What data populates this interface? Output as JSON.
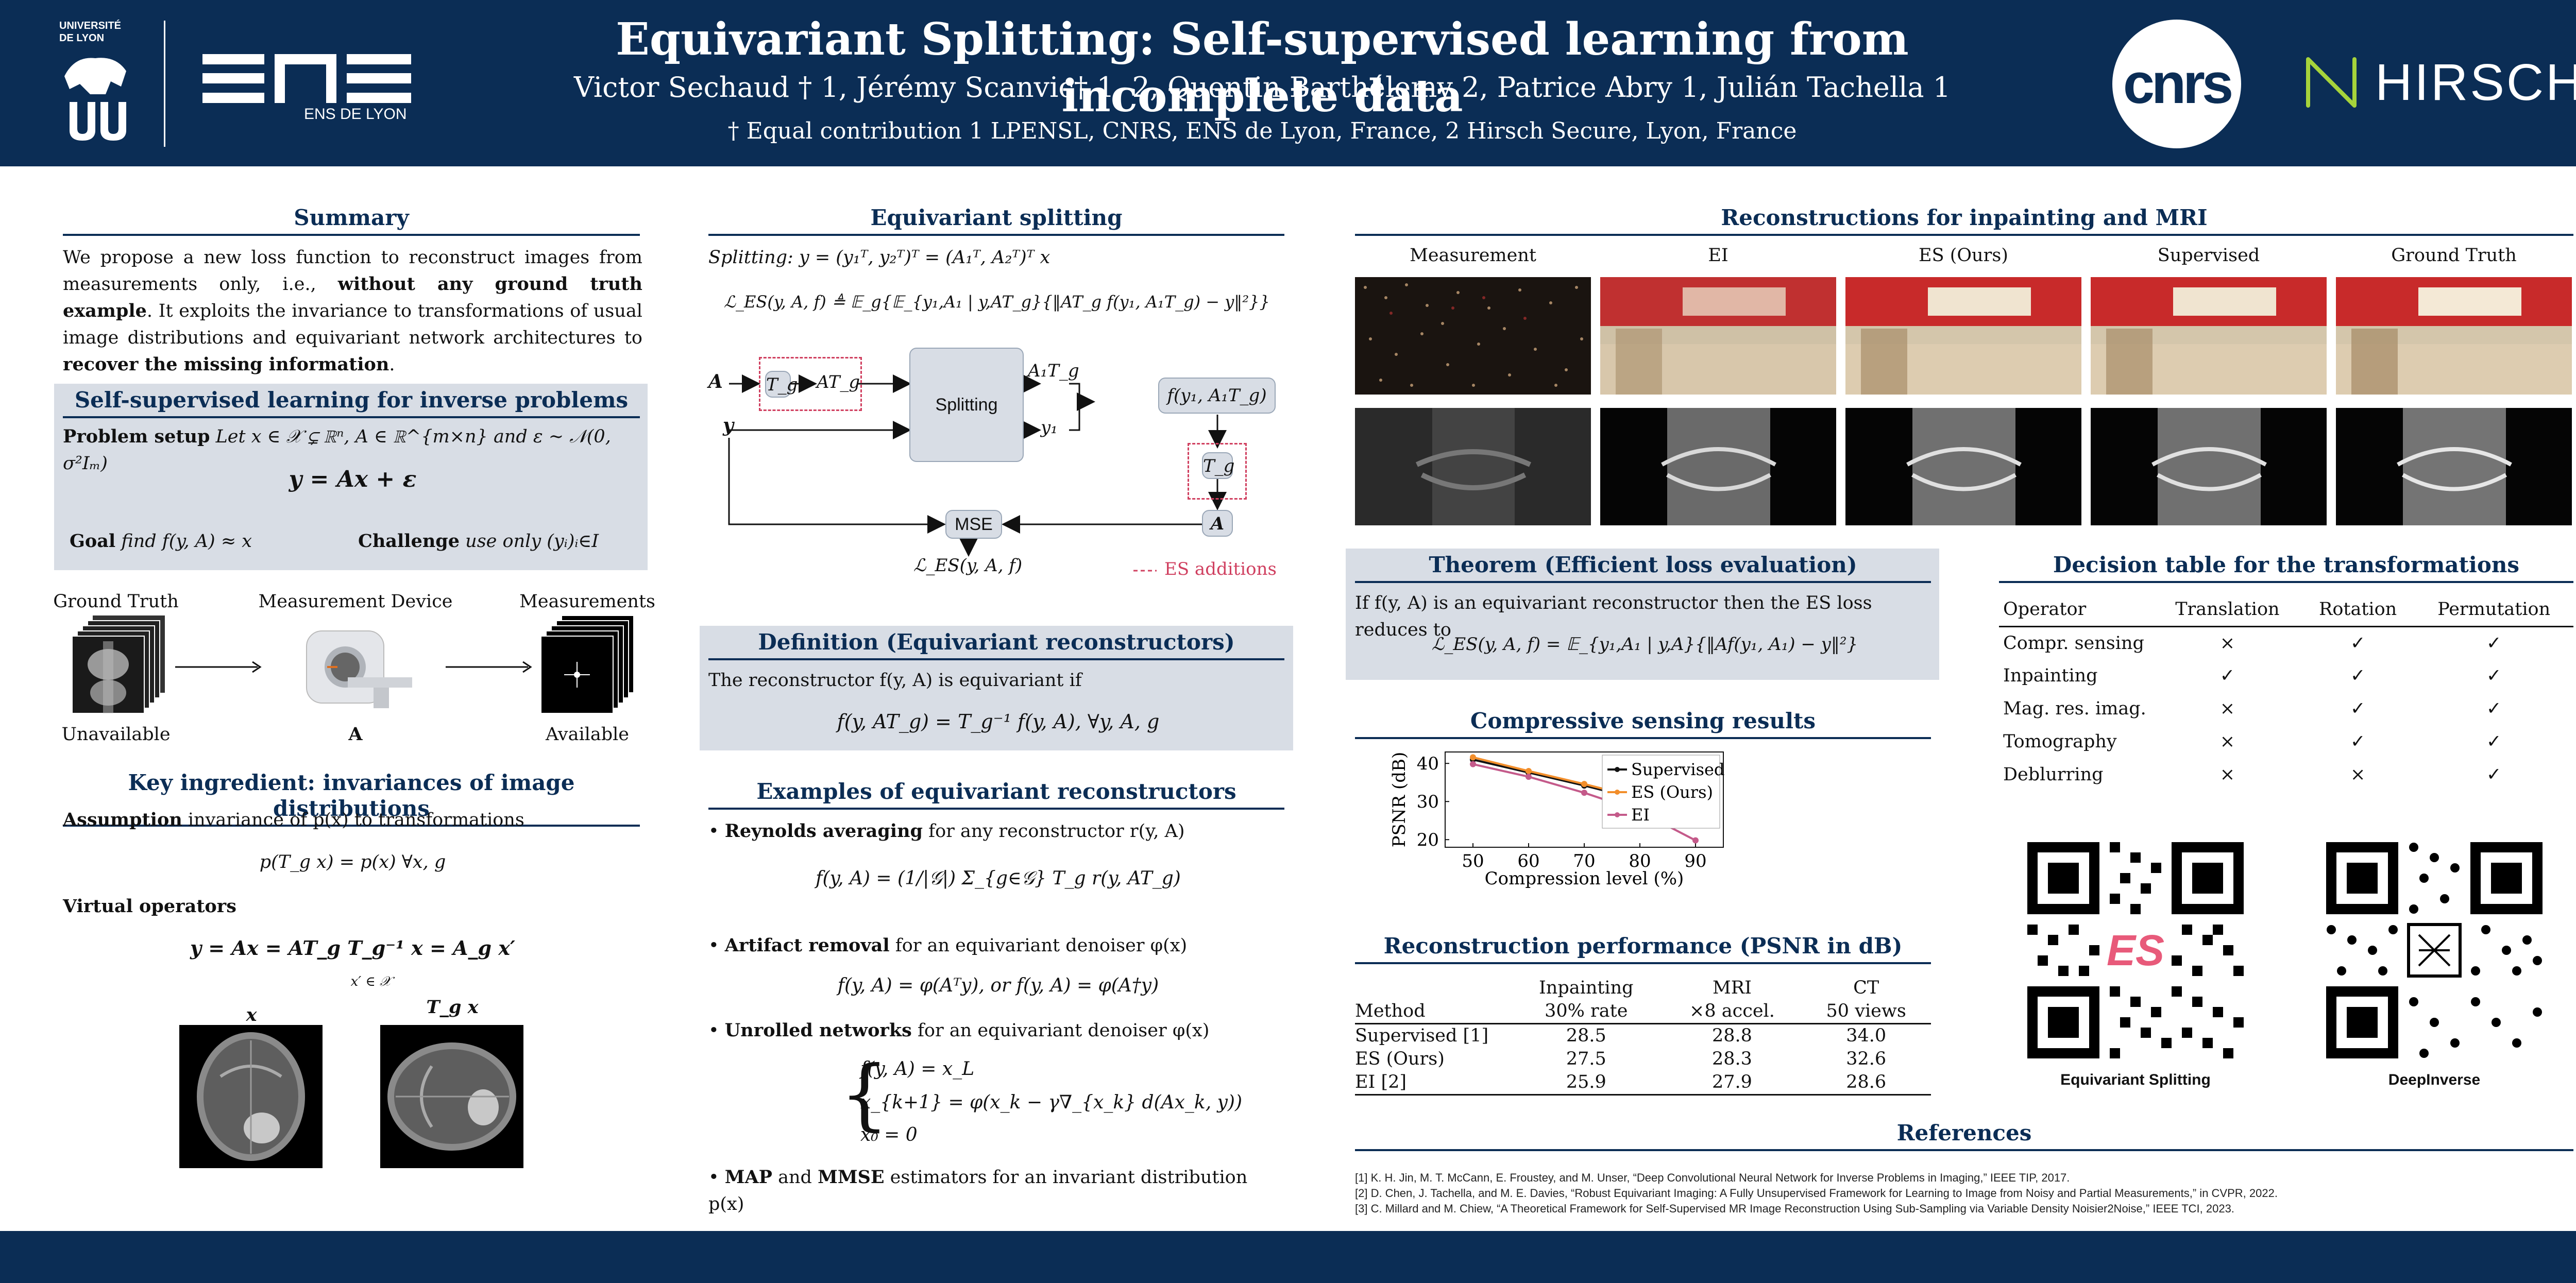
{
  "header": {
    "title": "Equivariant Splitting: Self-supervised learning from incomplete data",
    "authors": "Victor Sechaud † 1, Jérémy Scanvic† 1, 2, Quentin Barthélemy 2, Patrice Abry 1, Julián Tachella 1",
    "affiliations": "† Equal contribution 1 LPENSL, CNRS, ENS de Lyon, France, 2 Hirsch Secure, Lyon, France",
    "logo_univ": "UNIVERSITÉ DE LYON",
    "logo_ens_sub": "ENS DE LYON",
    "logo_cnrs": "cnrs",
    "logo_hirsch": "HIRSCH"
  },
  "summary": {
    "title": "Summary",
    "text_1": "We propose a new loss function to reconstruct images from measurements only, i.e., ",
    "bold_1": "without any ground truth example",
    "text_2": ". It exploits the invariance to transformations of usual image distributions and equivariant network architectures to ",
    "bold_2": "recover the missing information",
    "text_3": "."
  },
  "ssl": {
    "title": "Self-supervised learning for inverse problems",
    "setup_label": "Problem setup",
    "setup_text": "Let x ∈ 𝒳 ⊊ ℝⁿ, A ∈ ℝ^{m×n} and ε ∼ 𝒩(0, σ²Iₘ)",
    "equation": "y = Ax + ε",
    "goal_label": "Goal",
    "goal_text": "find f(y, A) ≈ x",
    "challenge_label": "Challenge",
    "challenge_text": "use only (yᵢ)ᵢ∈I"
  },
  "pipeline": {
    "ground_truth": "Ground Truth",
    "device": "Measurement Device",
    "measurements": "Measurements",
    "unavailable": "Unavailable",
    "operator": "A",
    "available": "Available"
  },
  "key_ingredient": {
    "title": "Key ingredient: invariances of image distributions",
    "assumption_label": "Assumption",
    "assumption_text": "invariance of p(x) to transformations",
    "eq1": "p(T_g x) = p(x)    ∀x, g",
    "virtual_label": "Virtual operators",
    "eq2": "y = Ax = AT_g T_g⁻¹ x = A_g x′",
    "eq2_sub": "x′ ∈ 𝒳",
    "img_x_label": "x",
    "img_tgx_label": "T_g x"
  },
  "es": {
    "title": "Equivariant splitting",
    "splitting_eq": "Splitting: y = (y₁ᵀ, y₂ᵀ)ᵀ = (A₁ᵀ, A₂ᵀ)ᵀ x",
    "loss_eq": "ℒ_ES(y, A, f) ≜ 𝔼_g{𝔼_{y₁,A₁ | y,AT_g}{‖AT_g f(y₁, A₁T_g) − y‖²}}",
    "diagram": {
      "A": "A",
      "Tg": "T_g",
      "ATg": "AT_g",
      "splitting": "Splitting",
      "A1Tg": "A₁T_g",
      "y1": "y₁",
      "y": "y",
      "f": "f(y₁, A₁T_g)",
      "Tg2": "T_g",
      "A2": "A",
      "mse": "MSE",
      "loss": "ℒ_ES(y, A, f)",
      "legend": "ES additions"
    }
  },
  "definition": {
    "title": "Definition (Equivariant reconstructors)",
    "text": "The reconstructor f(y, A) is equivariant if",
    "eq": "f(y, AT_g) = T_g⁻¹ f(y, A),    ∀y, A, g"
  },
  "examples": {
    "title": "Examples of equivariant reconstructors",
    "item1_bold": "Reynolds averaging",
    "item1_text": " for any reconstructor r(y, A)",
    "item1_eq": "f(y, A) = (1/|𝒢|) Σ_{g∈𝒢} T_g r(y, AT_g)",
    "item2_bold": "Artifact removal",
    "item2_text": " for an equivariant denoiser φ(x)",
    "item2_eq": "f(y, A) = φ(Aᵀy),    or    f(y, A) = φ(A†y)",
    "item3_bold": "Unrolled networks",
    "item3_text": " for an equivariant denoiser φ(x)",
    "item3_eq1": "f(y, A) = x_L",
    "item3_eq2": "x_{k+1} = φ(x_k − γ∇_{x_k} d(Ax_k, y))",
    "item3_eq3": "x₀ = 0",
    "item4_bold1": "MAP",
    "item4_and": " and ",
    "item4_bold2": "MMSE",
    "item4_text": " estimators for an invariant distribution p(x)"
  },
  "recon": {
    "title": "Reconstructions for inpainting and MRI",
    "columns": [
      "Measurement",
      "EI",
      "ES (Ours)",
      "Supervised",
      "Ground Truth"
    ]
  },
  "theorem": {
    "title": "Theorem (Efficient loss evaluation)",
    "text": "If f(y, A) is an equivariant reconstructor then the ES loss reduces to",
    "eq": "ℒ_ES(y, A, f) = 𝔼_{y₁,A₁ | y,A}{‖Af(y₁, A₁) − y‖²}"
  },
  "decision": {
    "title": "Decision table for the transformations",
    "headers": [
      "Operator",
      "Translation",
      "Rotation",
      "Permutation"
    ],
    "rows": [
      [
        "Compr. sensing",
        "×",
        "✓",
        "✓"
      ],
      [
        "Inpainting",
        "✓",
        "✓",
        "✓"
      ],
      [
        "Mag. res. imag.",
        "×",
        "✓",
        "✓"
      ],
      [
        "Tomography",
        "×",
        "✓",
        "✓"
      ],
      [
        "Deblurring",
        "×",
        "×",
        "✓"
      ]
    ]
  },
  "cs": {
    "title": "Compressive sensing results"
  },
  "chart_data": {
    "type": "line",
    "x": [
      50,
      60,
      70,
      80,
      90
    ],
    "series": [
      {
        "name": "Supervised",
        "values": [
          41.0,
          37.6,
          34.2,
          30.5,
          25.6
        ],
        "color": "#111111"
      },
      {
        "name": "ES (Ours)",
        "values": [
          41.6,
          38.0,
          34.6,
          30.9,
          25.8
        ],
        "color": "#f28e2b"
      },
      {
        "name": "EI",
        "values": [
          39.8,
          36.5,
          32.3,
          27.4,
          19.8
        ],
        "color": "#c45a8a"
      }
    ],
    "xlabel": "Compression level (%)",
    "ylabel": "PSNR (dB)",
    "xticks": [
      50,
      60,
      70,
      80,
      90
    ],
    "yticks": [
      20,
      30,
      40
    ],
    "xlim": [
      45,
      95
    ],
    "ylim": [
      18,
      43
    ],
    "legend": "top-right",
    "grid": false
  },
  "perf": {
    "title": "Reconstruction performance (PSNR in dB)",
    "headers_top": [
      "",
      "Inpainting",
      "MRI",
      "CT"
    ],
    "headers_bot": [
      "Method",
      "30% rate",
      "×8 accel.",
      "50 views"
    ],
    "rows": [
      [
        "Supervised [1]",
        "28.5",
        "28.8",
        "34.0"
      ],
      [
        "ES (Ours)",
        "27.5",
        "28.3",
        "32.6"
      ],
      [
        "EI [2]",
        "25.9",
        "27.9",
        "28.6"
      ]
    ]
  },
  "qr": {
    "label1": "Equivariant Splitting",
    "logo1": "ES",
    "label2": "DeepInverse"
  },
  "references": {
    "title": "References",
    "items": [
      "[1]  K. H. Jin, M. T. McCann, E. Froustey, and M. Unser, “Deep Convolutional Neural Network for Inverse Problems in Imaging,” IEEE TIP, 2017.",
      "[2]  D. Chen, J. Tachella, and M. E. Davies, “Robust Equivariant Imaging: A Fully Unsupervised Framework for Learning to Image from Noisy and Partial Measurements,” in CVPR,  2022.",
      "[3]  C. Millard and M. Chiew, “A Theoretical Framework for Self-Supervised MR Image Reconstruction Using Sub-Sampling via Variable Density Noisier2Noise,” IEEE TCI, 2023."
    ]
  }
}
